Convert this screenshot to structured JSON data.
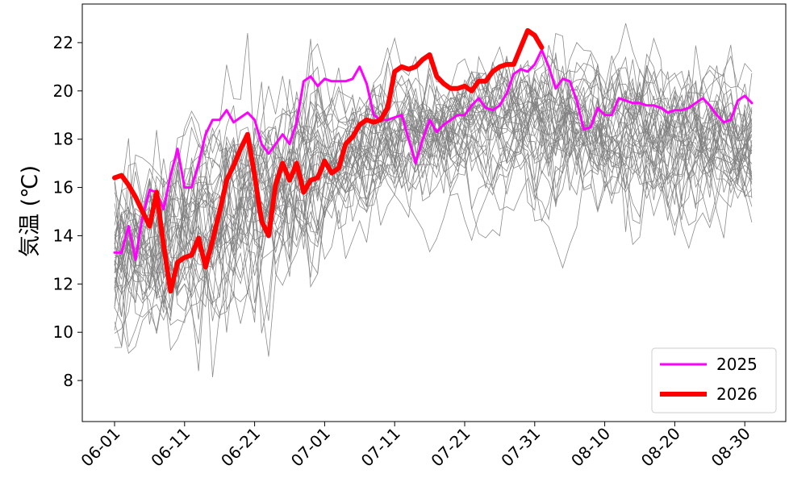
{
  "chart_data": {
    "type": "line",
    "title": "",
    "xlabel": "",
    "ylabel": "気温 (℃)",
    "x_start": "06-01",
    "x_end": "08-31",
    "x_ticks": [
      "06-01",
      "06-11",
      "06-21",
      "07-01",
      "07-11",
      "07-21",
      "07-31",
      "08-10",
      "08-20",
      "08-30"
    ],
    "y_ticks": [
      8,
      10,
      12,
      14,
      16,
      18,
      20,
      22
    ],
    "ylim": [
      6.3,
      23.6
    ],
    "grid": false,
    "legend_position": "lower-right",
    "background_series": {
      "count": 40,
      "color": "#808080",
      "description_none": ""
    },
    "series": [
      {
        "name": "2025",
        "color": "#ff00ff",
        "values": [
          13.3,
          13.3,
          14.4,
          13.0,
          14.8,
          15.9,
          15.8,
          15.1,
          16.5,
          17.6,
          16.0,
          16.0,
          17.0,
          18.2,
          18.8,
          18.8,
          19.2,
          18.7,
          18.9,
          19.1,
          18.8,
          17.8,
          17.4,
          17.8,
          18.2,
          17.8,
          18.7,
          20.4,
          20.6,
          20.2,
          20.5,
          20.4,
          20.4,
          20.4,
          20.5,
          21.0,
          20.3,
          19.0,
          18.8,
          18.8,
          18.9,
          19.0,
          18.0,
          17.0,
          18.0,
          18.8,
          18.3,
          18.6,
          18.8,
          19.0,
          19.0,
          19.4,
          19.7,
          19.3,
          19.2,
          19.4,
          19.9,
          20.7,
          20.9,
          20.8,
          21.1,
          21.7,
          21.0,
          20.1,
          20.5,
          20.4,
          19.6,
          18.4,
          18.5,
          19.3,
          19.0,
          19.0,
          19.7,
          19.6,
          19.5,
          19.5,
          19.4,
          19.4,
          19.3,
          19.1,
          19.2,
          19.2,
          19.3,
          19.5,
          19.7,
          19.4,
          19.0,
          18.7,
          18.8,
          19.6,
          19.8,
          19.5
        ],
        "line_width": 3
      },
      {
        "name": "2026",
        "color": "#ff0000",
        "values": [
          16.4,
          16.5,
          16.1,
          15.6,
          15.0,
          14.4,
          15.8,
          13.6,
          11.7,
          12.9,
          13.1,
          13.2,
          13.9,
          12.7,
          13.8,
          15.0,
          16.3,
          16.9,
          17.6,
          18.2,
          16.5,
          14.6,
          14.0,
          16.1,
          17.0,
          16.3,
          17.0,
          15.8,
          16.3,
          16.4,
          17.1,
          16.6,
          16.8,
          17.8,
          18.1,
          18.6,
          18.8,
          18.7,
          18.8,
          19.3,
          20.8,
          21.0,
          20.9,
          21.0,
          21.3,
          21.5,
          20.6,
          20.3,
          20.1,
          20.1,
          20.2,
          20.0,
          20.4,
          20.4,
          20.8,
          21.0,
          21.1,
          21.1,
          21.8,
          22.5,
          22.3,
          21.8
        ],
        "line_width": 6
      }
    ]
  }
}
